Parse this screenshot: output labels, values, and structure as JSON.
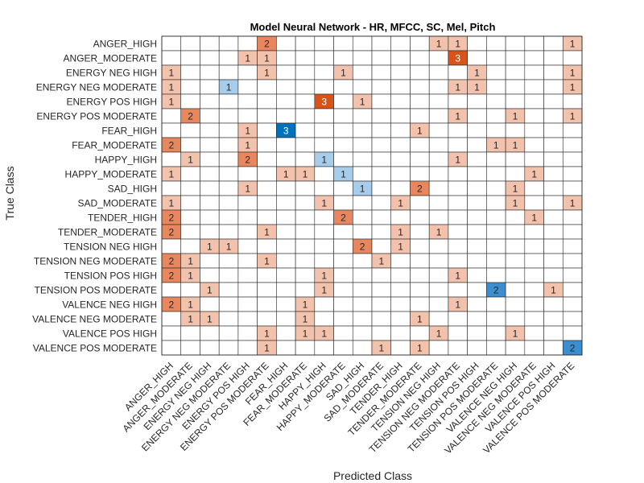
{
  "chart_data": {
    "type": "heatmap",
    "title": "Model Neural Network - HR, MFCC, SC, Mel, Pitch",
    "xlabel": "Predicted Class",
    "ylabel": "True Class",
    "classes": [
      "ANGER_HIGH",
      "ANGER_MODERATE",
      "ENERGY NEG HIGH",
      "ENERGY NEG MODERATE",
      "ENERGY POS HIGH",
      "ENERGY POS MODERATE",
      "FEAR_HIGH",
      "FEAR_MODERATE",
      "HAPPY_HIGH",
      "HAPPY_MODERATE",
      "SAD_HIGH",
      "SAD_MODERATE",
      "TENDER_HIGH",
      "TENDER_MODERATE",
      "TENSION NEG HIGH",
      "TENSION NEG MODERATE",
      "TENSION POS HIGH",
      "TENSION POS MODERATE",
      "VALENCE NEG HIGH",
      "VALENCE NEG MODERATE",
      "VALENCE POS HIGH",
      "VALENCE POS MODERATE"
    ],
    "matrix": [
      [
        0,
        0,
        0,
        0,
        0,
        2,
        0,
        0,
        0,
        0,
        0,
        0,
        0,
        0,
        1,
        1,
        0,
        0,
        0,
        0,
        0,
        1
      ],
      [
        0,
        0,
        0,
        0,
        1,
        1,
        0,
        0,
        0,
        0,
        0,
        0,
        0,
        0,
        0,
        3,
        0,
        0,
        0,
        0,
        0,
        0
      ],
      [
        1,
        0,
        0,
        0,
        0,
        1,
        0,
        0,
        0,
        1,
        0,
        0,
        0,
        0,
        0,
        0,
        1,
        0,
        0,
        0,
        0,
        1
      ],
      [
        1,
        0,
        0,
        1,
        0,
        0,
        0,
        0,
        0,
        0,
        0,
        0,
        0,
        0,
        0,
        1,
        1,
        0,
        0,
        0,
        0,
        1
      ],
      [
        1,
        0,
        0,
        0,
        0,
        0,
        0,
        0,
        3,
        0,
        1,
        0,
        0,
        0,
        0,
        0,
        0,
        0,
        0,
        0,
        0,
        0
      ],
      [
        0,
        2,
        0,
        0,
        0,
        0,
        0,
        0,
        0,
        0,
        0,
        0,
        0,
        0,
        0,
        1,
        0,
        0,
        1,
        0,
        0,
        1
      ],
      [
        0,
        0,
        0,
        0,
        1,
        0,
        3,
        0,
        0,
        0,
        0,
        0,
        0,
        1,
        0,
        0,
        0,
        0,
        0,
        0,
        0,
        0
      ],
      [
        2,
        0,
        0,
        0,
        1,
        0,
        0,
        0,
        0,
        0,
        0,
        0,
        0,
        0,
        0,
        0,
        0,
        1,
        1,
        0,
        0,
        0
      ],
      [
        0,
        1,
        0,
        0,
        2,
        0,
        0,
        0,
        1,
        0,
        0,
        0,
        0,
        0,
        0,
        1,
        0,
        0,
        0,
        0,
        0,
        0
      ],
      [
        1,
        0,
        0,
        0,
        0,
        0,
        1,
        1,
        0,
        1,
        0,
        0,
        0,
        0,
        0,
        0,
        0,
        0,
        0,
        1,
        0,
        0
      ],
      [
        0,
        0,
        0,
        0,
        1,
        0,
        0,
        0,
        0,
        0,
        1,
        0,
        0,
        2,
        0,
        0,
        0,
        0,
        1,
        0,
        0,
        0
      ],
      [
        1,
        0,
        0,
        0,
        0,
        0,
        0,
        0,
        1,
        0,
        0,
        0,
        1,
        0,
        0,
        0,
        0,
        0,
        1,
        0,
        0,
        1
      ],
      [
        2,
        0,
        0,
        0,
        0,
        0,
        0,
        0,
        0,
        2,
        0,
        0,
        0,
        0,
        0,
        0,
        0,
        0,
        0,
        1,
        0,
        0
      ],
      [
        2,
        0,
        0,
        0,
        0,
        1,
        0,
        0,
        0,
        0,
        0,
        0,
        1,
        0,
        1,
        0,
        0,
        0,
        0,
        0,
        0,
        0
      ],
      [
        0,
        0,
        1,
        1,
        0,
        0,
        0,
        0,
        0,
        0,
        2,
        0,
        1,
        0,
        0,
        0,
        0,
        0,
        0,
        0,
        0,
        0
      ],
      [
        2,
        1,
        0,
        0,
        0,
        1,
        0,
        0,
        0,
        0,
        0,
        1,
        0,
        0,
        0,
        0,
        0,
        0,
        0,
        0,
        0,
        0
      ],
      [
        2,
        1,
        0,
        0,
        0,
        0,
        0,
        0,
        1,
        0,
        0,
        0,
        0,
        0,
        0,
        1,
        0,
        0,
        0,
        0,
        0,
        0
      ],
      [
        0,
        0,
        1,
        0,
        0,
        0,
        0,
        0,
        1,
        0,
        0,
        0,
        0,
        0,
        0,
        0,
        0,
        2,
        0,
        0,
        1,
        0
      ],
      [
        2,
        1,
        0,
        0,
        0,
        0,
        0,
        1,
        0,
        0,
        0,
        0,
        0,
        0,
        0,
        1,
        0,
        0,
        0,
        0,
        0,
        0
      ],
      [
        0,
        1,
        1,
        0,
        0,
        0,
        0,
        1,
        0,
        0,
        0,
        0,
        0,
        1,
        0,
        0,
        0,
        0,
        0,
        0,
        0,
        0
      ],
      [
        0,
        0,
        0,
        0,
        0,
        1,
        0,
        1,
        1,
        0,
        0,
        0,
        0,
        0,
        1,
        0,
        0,
        0,
        1,
        0,
        0,
        0
      ],
      [
        0,
        0,
        0,
        0,
        0,
        1,
        0,
        0,
        0,
        0,
        0,
        1,
        0,
        1,
        0,
        0,
        0,
        0,
        0,
        0,
        0,
        2
      ]
    ],
    "colors": {
      "diag_1": "#a6cdec",
      "diag_2": "#3b8fd0",
      "diag_3": "#0072bd",
      "off_1": "#f2c2ad",
      "off_2": "#e8865e",
      "off_3": "#d95319",
      "grid": "#262626"
    }
  }
}
